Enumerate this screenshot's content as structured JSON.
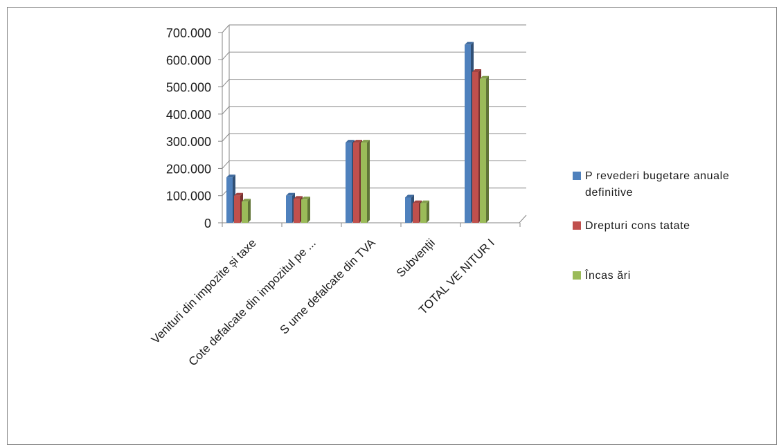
{
  "chart_data": {
    "type": "bar",
    "categories": [
      "Venituri din impozite și taxe",
      "Cote defalcate din impozitul pe ...",
      "S ume defalcate din TVA",
      "Subvenții",
      "TOTAL VE NITUR I"
    ],
    "series": [
      {
        "name": "P revederi bugetare anuale definitive",
        "color": "#4f81bd",
        "values": [
          167000,
          100000,
          295000,
          93000,
          655000
        ]
      },
      {
        "name": "Drepturi cons tatate",
        "color": "#c0504d",
        "values": [
          100000,
          88000,
          295000,
          72000,
          555000
        ]
      },
      {
        "name": "Încas ări",
        "color": "#9bbb59",
        "values": [
          78000,
          86000,
          295000,
          72000,
          530000
        ]
      }
    ],
    "yticks": [
      "0",
      "100.000",
      "200.000",
      "300.000",
      "400.000",
      "500.000",
      "600.000",
      "700.000"
    ],
    "ylim": [
      0,
      700000
    ],
    "grid": true,
    "legend_position": "right"
  }
}
